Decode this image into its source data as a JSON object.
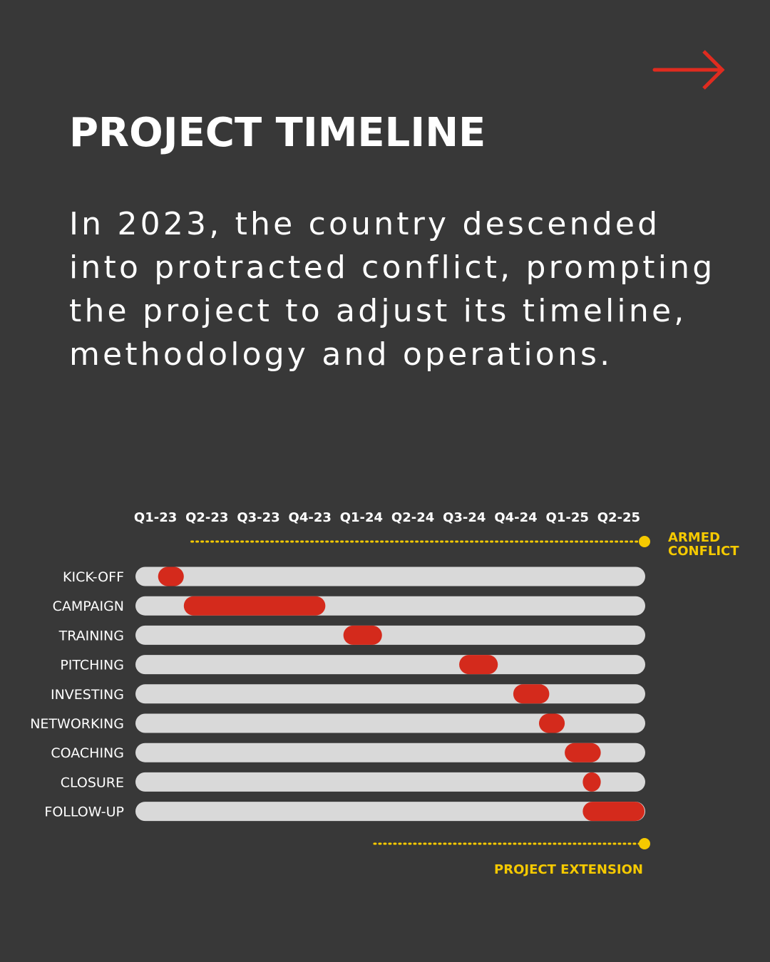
{
  "header": {
    "title": "PROJECT TIMELINE",
    "intro_lines": [
      "In 2023, the country descended",
      "into protracted conflict, prompting",
      "the project to adjust its timeline,",
      "methodology and operations."
    ],
    "next_icon": "arrow-right-icon"
  },
  "colors": {
    "background": "#383838",
    "track": "#d9d9d9",
    "activity": "#d42a1c",
    "annotation": "#f5c900",
    "arrow": "#e02b1f"
  },
  "chart_data": {
    "type": "gantt",
    "quarters": [
      "Q1-23",
      "Q2-23",
      "Q3-23",
      "Q4-23",
      "Q1-24",
      "Q2-24",
      "Q3-24",
      "Q4-24",
      "Q1-25",
      "Q2-25"
    ],
    "rows": [
      {
        "label": "KICK-OFF",
        "start": 0.55,
        "end": 1.05
      },
      {
        "label": "CAMPAIGN",
        "start": 1.05,
        "end": 3.8
      },
      {
        "label": "TRAINING",
        "start": 4.15,
        "end": 4.9
      },
      {
        "label": "PITCHING",
        "start": 6.4,
        "end": 7.15
      },
      {
        "label": "INVESTING",
        "start": 7.45,
        "end": 8.15
      },
      {
        "label": "NETWORKING",
        "start": 7.95,
        "end": 8.45
      },
      {
        "label": "COACHING",
        "start": 8.45,
        "end": 9.15
      },
      {
        "label": "CLOSURE",
        "start": 8.8,
        "end": 9.15
      },
      {
        "label": "FOLLOW-UP",
        "start": 8.8,
        "end": 10.0
      }
    ],
    "annotations": [
      {
        "label_lines": [
          "ARMED",
          "CONFLICT"
        ],
        "start": 1.2,
        "end": 10.0
      },
      {
        "label_lines": [
          "PROJECT EXTENSION"
        ],
        "start": 4.75,
        "end": 10.0
      }
    ]
  }
}
